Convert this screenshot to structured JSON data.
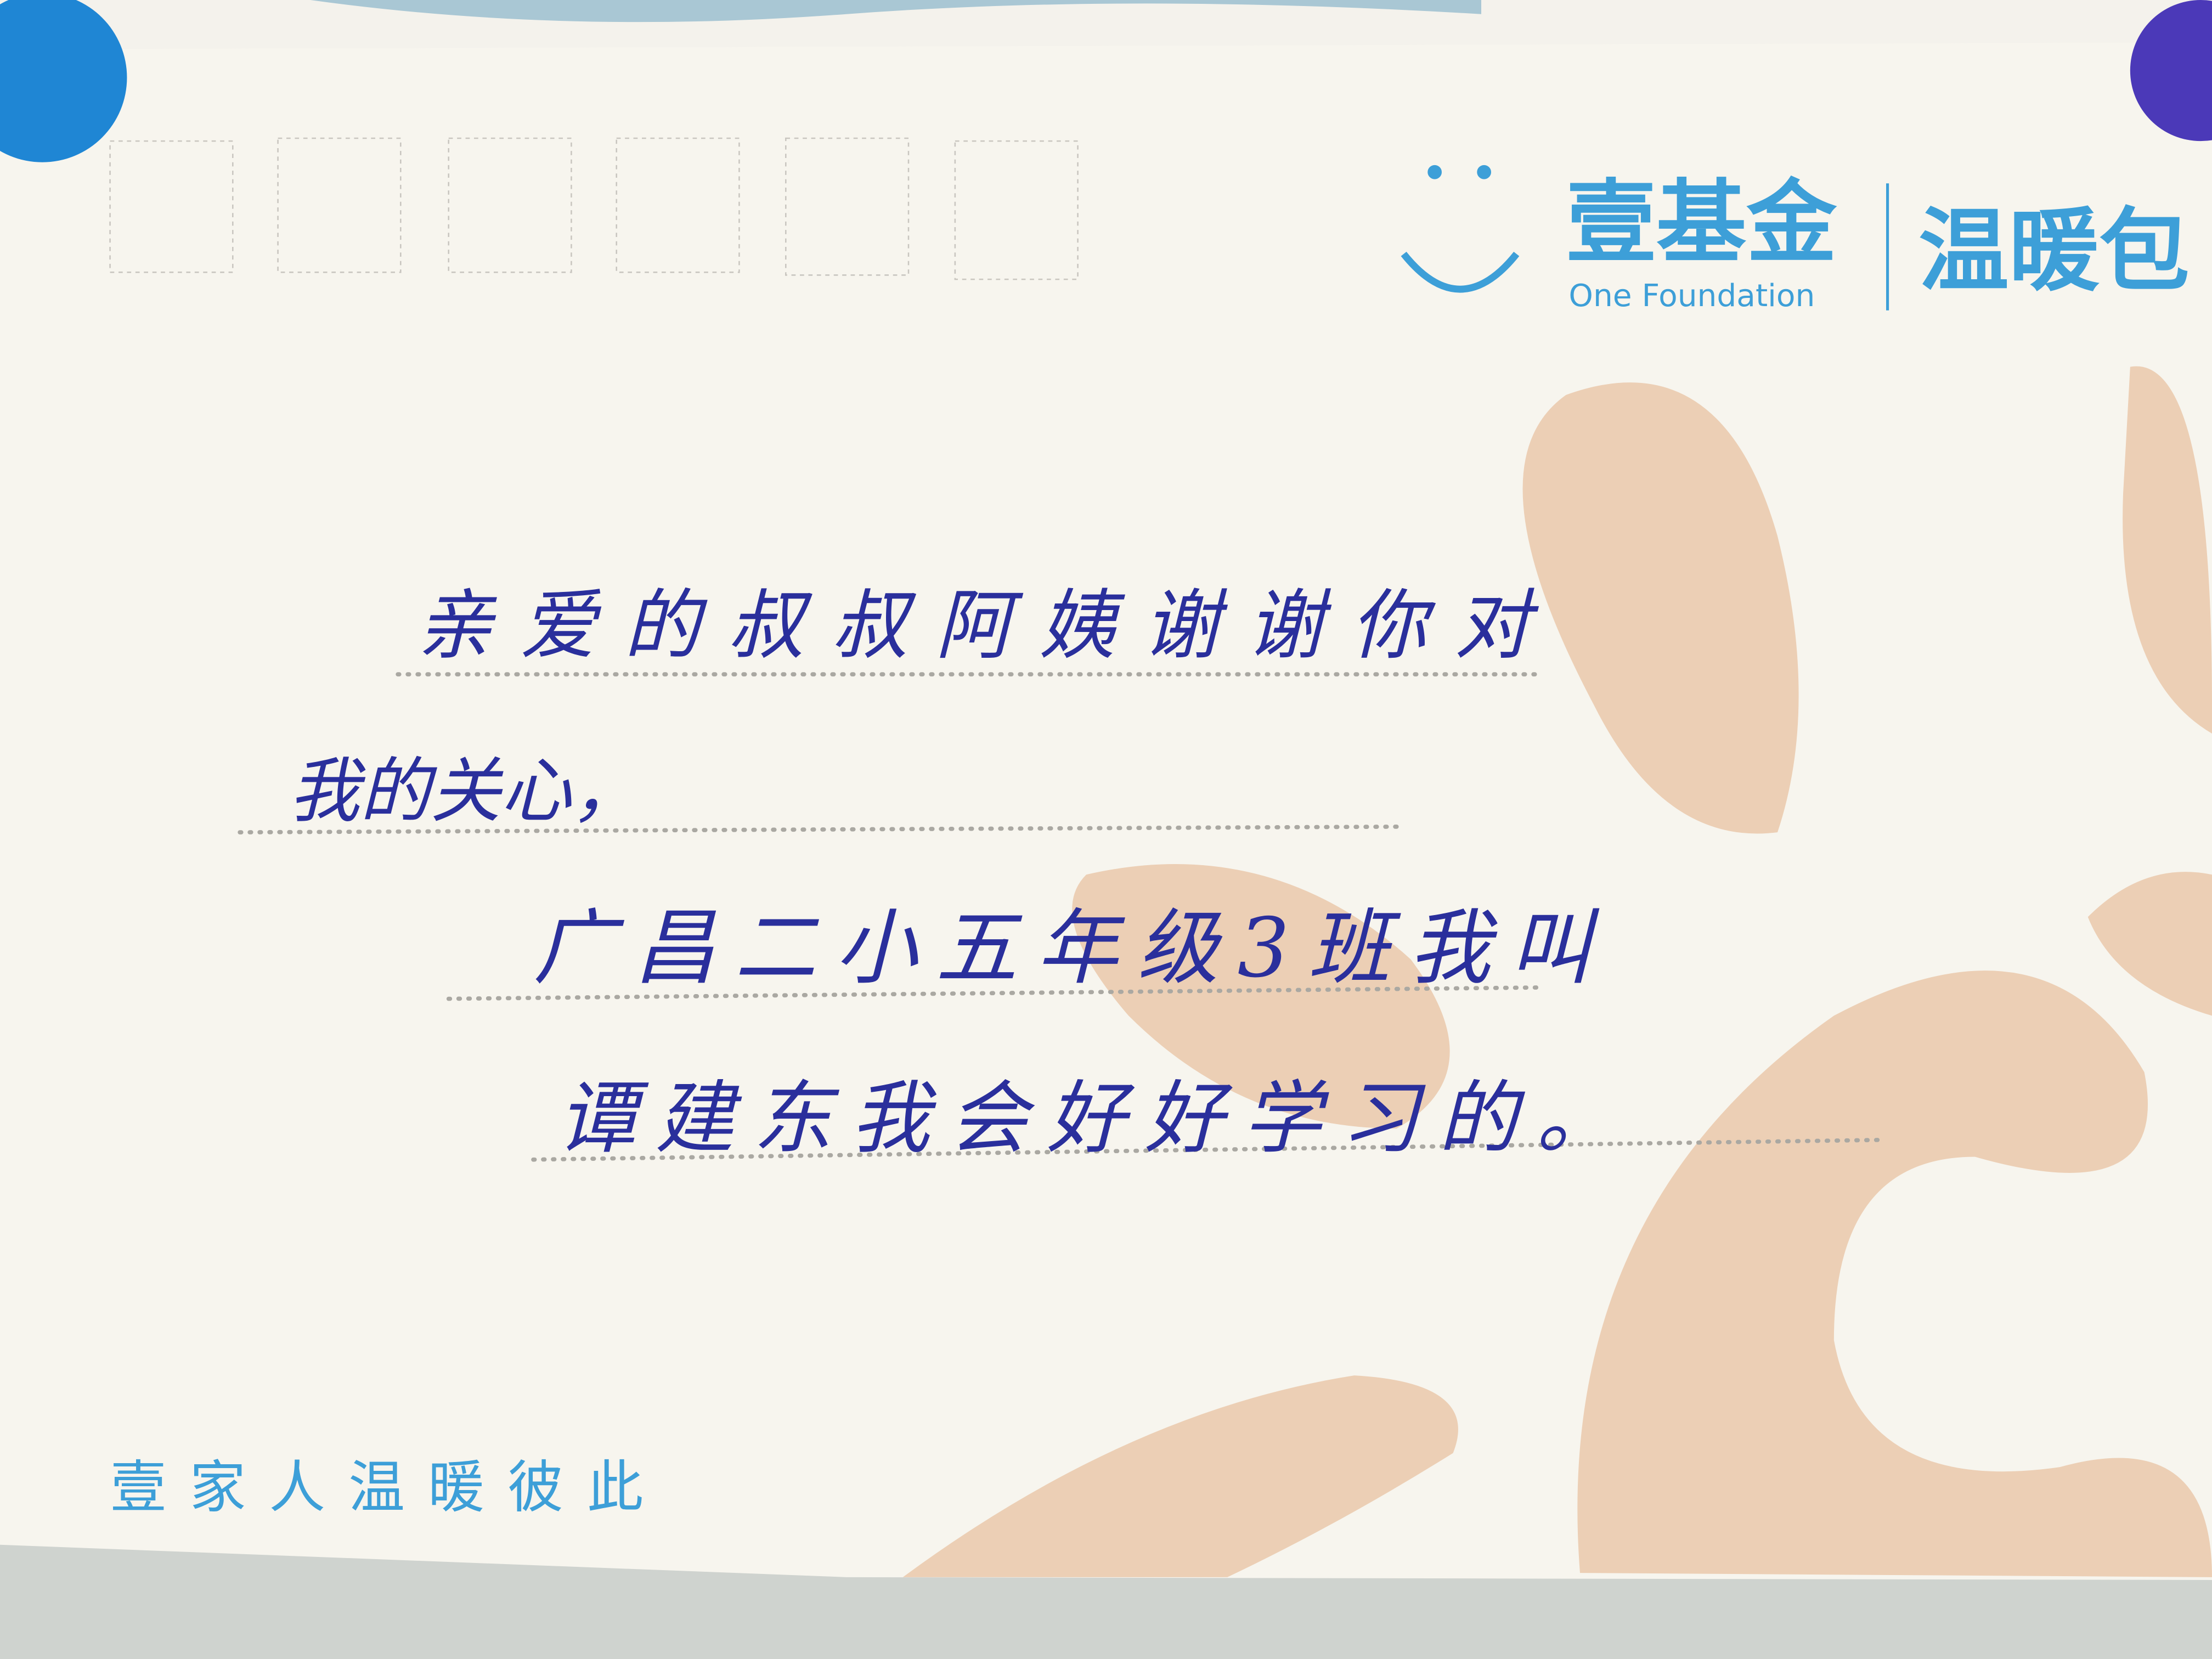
{
  "logo": {
    "brand": "壹基金",
    "brand_en": "One Foundation",
    "campaign": "温暖包"
  },
  "letter": {
    "lines": [
      "亲爱的叔叔阿姨谢谢你对",
      "我的关心，",
      "广昌二小五年级3班我叫",
      "谭建东我会好好学习的。"
    ]
  },
  "footer": {
    "slogan": "壹家人温暖彼此"
  }
}
